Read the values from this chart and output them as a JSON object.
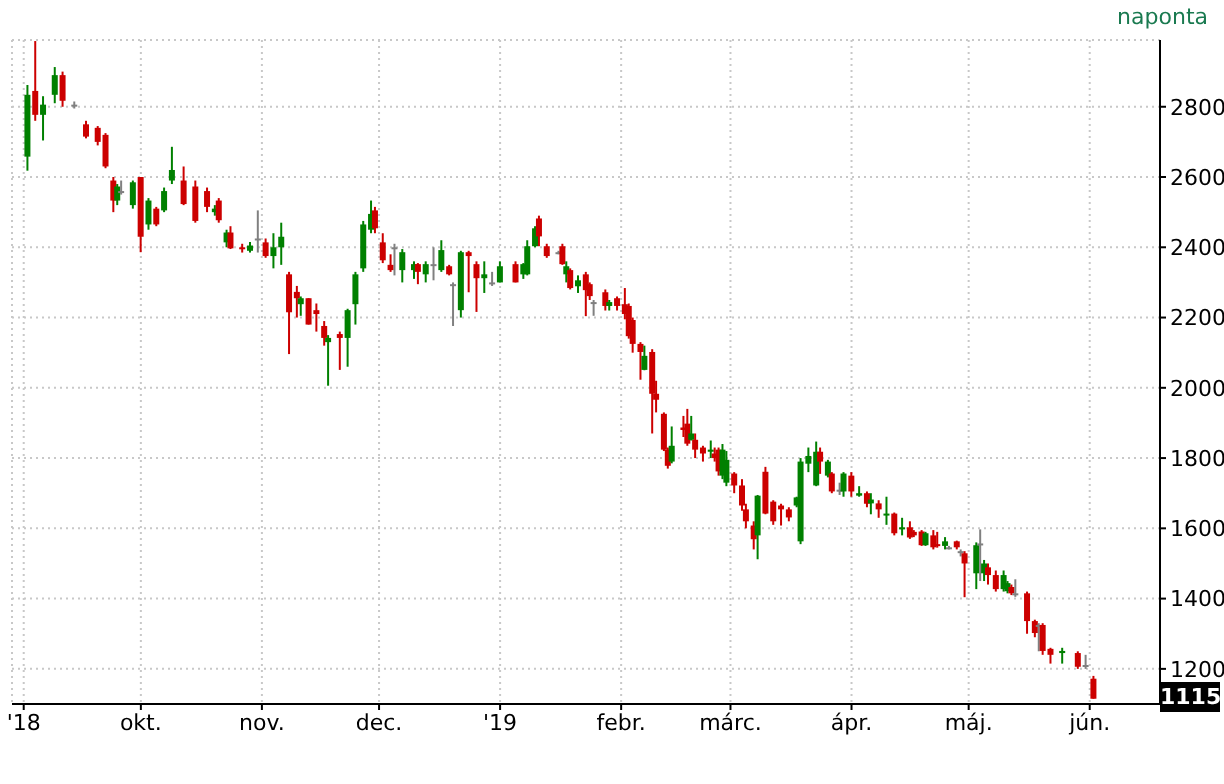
{
  "chart_data": {
    "type": "candlestick",
    "annotations": [
      "naponta",
      {
        "text": "1115",
        "y": 1115
      }
    ],
    "x": [
      "2018-09-02",
      "2018-09-04",
      "2018-09-06",
      "2018-09-09",
      "2018-09-11",
      "2018-09-14",
      "2018-09-17",
      "2018-09-20",
      "2018-09-22",
      "2018-09-24",
      "2018-09-25",
      "2018-09-26",
      "2018-09-29",
      "2018-10-01",
      "2018-10-03",
      "2018-10-05",
      "2018-10-07",
      "2018-10-09",
      "2018-10-12",
      "2018-10-15",
      "2018-10-18",
      "2018-10-20",
      "2018-10-21",
      "2018-10-23",
      "2018-10-24",
      "2018-10-27",
      "2018-10-29",
      "2018-10-31",
      "2018-11-02",
      "2018-11-04",
      "2018-11-06",
      "2018-11-08",
      "2018-11-10",
      "2018-11-11",
      "2018-11-13",
      "2018-11-15",
      "2018-11-17",
      "2018-11-18",
      "2018-11-21",
      "2018-11-23",
      "2018-11-25",
      "2018-11-27",
      "2018-11-29",
      "2018-11-30",
      "2018-12-02",
      "2018-12-04",
      "2018-12-05",
      "2018-12-07",
      "2018-12-10",
      "2018-12-11",
      "2018-12-13",
      "2018-12-15",
      "2018-12-17",
      "2018-12-19",
      "2018-12-20",
      "2018-12-22",
      "2018-12-24",
      "2018-12-26",
      "2018-12-28",
      "2018-12-30",
      "2019-01-01",
      "2019-01-05",
      "2019-01-07",
      "2019-01-08",
      "2019-01-10",
      "2019-01-11",
      "2019-01-13",
      "2019-01-16",
      "2019-01-17",
      "2019-01-18",
      "2019-01-19",
      "2019-01-21",
      "2019-01-23",
      "2019-01-24",
      "2019-01-25",
      "2019-01-28",
      "2019-01-29",
      "2019-01-31",
      "2019-02-02",
      "2019-02-03",
      "2019-02-04",
      "2019-02-06",
      "2019-02-07",
      "2019-02-09",
      "2019-02-10",
      "2019-02-12",
      "2019-02-13",
      "2019-02-14",
      "2019-02-17",
      "2019-02-18",
      "2019-02-19",
      "2019-02-20",
      "2019-02-22",
      "2019-02-24",
      "2019-02-25",
      "2019-02-26",
      "2019-02-27",
      "2019-02-28",
      "2019-03-02",
      "2019-03-04",
      "2019-03-05",
      "2019-03-07",
      "2019-03-08",
      "2019-03-10",
      "2019-03-12",
      "2019-03-14",
      "2019-03-16",
      "2019-03-18",
      "2019-03-19",
      "2019-03-21",
      "2019-03-23",
      "2019-03-24",
      "2019-03-26",
      "2019-03-27",
      "2019-03-29",
      "2019-03-30",
      "2019-04-01",
      "2019-04-03",
      "2019-04-05",
      "2019-04-06",
      "2019-04-08",
      "2019-04-10",
      "2019-04-12",
      "2019-04-14",
      "2019-04-16",
      "2019-04-17",
      "2019-04-19",
      "2019-04-20",
      "2019-04-22",
      "2019-04-23",
      "2019-04-25",
      "2019-04-26",
      "2019-04-28",
      "2019-04-29",
      "2019-04-30",
      "2019-05-03",
      "2019-05-04",
      "2019-05-05",
      "2019-05-06",
      "2019-05-08",
      "2019-05-10",
      "2019-05-11",
      "2019-05-12",
      "2019-05-13",
      "2019-05-16",
      "2019-05-18",
      "2019-05-19",
      "2019-05-20",
      "2019-05-22",
      "2019-05-25",
      "2019-05-29",
      "2019-05-31",
      "2019-06-02"
    ],
    "ohlc": [
      [
        2658,
        2862,
        2618,
        2834
      ],
      [
        2845,
        2987,
        2760,
        2777
      ],
      [
        2777,
        2830,
        2704,
        2806
      ],
      [
        2834,
        2913,
        2810,
        2890
      ],
      [
        2890,
        2900,
        2800,
        2817
      ],
      [
        2806,
        2815,
        2795,
        2806
      ],
      [
        2750,
        2760,
        2710,
        2715
      ],
      [
        2740,
        2745,
        2690,
        2700
      ],
      [
        2720,
        2725,
        2625,
        2630
      ],
      [
        2590,
        2600,
        2500,
        2533
      ],
      [
        2533,
        2580,
        2520,
        2573
      ],
      [
        2560,
        2590,
        2550,
        2560
      ],
      [
        2520,
        2590,
        2510,
        2585
      ],
      [
        2600,
        2600,
        2386,
        2430
      ],
      [
        2465,
        2540,
        2450,
        2533
      ],
      [
        2510,
        2515,
        2460,
        2465
      ],
      [
        2505,
        2570,
        2500,
        2560
      ],
      [
        2590,
        2686,
        2580,
        2620
      ],
      [
        2590,
        2630,
        2520,
        2523
      ],
      [
        2573,
        2590,
        2470,
        2475
      ],
      [
        2560,
        2570,
        2500,
        2515
      ],
      [
        2500,
        2520,
        2490,
        2510
      ],
      [
        2533,
        2540,
        2470,
        2477
      ],
      [
        2414,
        2450,
        2400,
        2442
      ],
      [
        2442,
        2460,
        2395,
        2397
      ],
      [
        2400,
        2410,
        2385,
        2395
      ],
      [
        2390,
        2415,
        2385,
        2405
      ],
      [
        2425,
        2505,
        2385,
        2425
      ],
      [
        2414,
        2425,
        2370,
        2375
      ],
      [
        2375,
        2440,
        2340,
        2400
      ],
      [
        2400,
        2470,
        2350,
        2430
      ],
      [
        2323,
        2330,
        2096,
        2215
      ],
      [
        2273,
        2290,
        2200,
        2255
      ],
      [
        2238,
        2260,
        2205,
        2255
      ],
      [
        2255,
        2255,
        2180,
        2180
      ],
      [
        2221,
        2240,
        2160,
        2210
      ],
      [
        2176,
        2190,
        2120,
        2142
      ],
      [
        2130,
        2150,
        2006,
        2142
      ],
      [
        2153,
        2160,
        2051,
        2142
      ],
      [
        2142,
        2225,
        2060,
        2221
      ],
      [
        2238,
        2330,
        2180,
        2323
      ],
      [
        2340,
        2475,
        2330,
        2465
      ],
      [
        2450,
        2533,
        2440,
        2495
      ],
      [
        2505,
        2515,
        2440,
        2454
      ],
      [
        2414,
        2440,
        2355,
        2363
      ],
      [
        2350,
        2380,
        2330,
        2335
      ],
      [
        2400,
        2410,
        2320,
        2400
      ],
      [
        2335,
        2395,
        2300,
        2386
      ],
      [
        2335,
        2360,
        2310,
        2352
      ],
      [
        2352,
        2355,
        2295,
        2330
      ],
      [
        2323,
        2360,
        2300,
        2352
      ],
      [
        2352,
        2400,
        2306,
        2352
      ],
      [
        2335,
        2420,
        2330,
        2392
      ],
      [
        2346,
        2350,
        2320,
        2323
      ],
      [
        2295,
        2300,
        2176,
        2295
      ],
      [
        2221,
        2390,
        2200,
        2386
      ],
      [
        2386,
        2390,
        2272,
        2375
      ],
      [
        2352,
        2360,
        2216,
        2312
      ],
      [
        2312,
        2360,
        2270,
        2323
      ],
      [
        2300,
        2330,
        2290,
        2300
      ],
      [
        2300,
        2360,
        2300,
        2346
      ],
      [
        2352,
        2360,
        2300,
        2300
      ],
      [
        2323,
        2355,
        2310,
        2352
      ],
      [
        2323,
        2420,
        2320,
        2403
      ],
      [
        2403,
        2460,
        2400,
        2454
      ],
      [
        2482,
        2490,
        2403,
        2431
      ],
      [
        2403,
        2410,
        2370,
        2375
      ],
      [
        2386,
        2390,
        2380,
        2386
      ],
      [
        2403,
        2410,
        2350,
        2352
      ],
      [
        2323,
        2360,
        2300,
        2346
      ],
      [
        2335,
        2340,
        2280,
        2284
      ],
      [
        2289,
        2320,
        2270,
        2306
      ],
      [
        2323,
        2330,
        2204,
        2278
      ],
      [
        2295,
        2300,
        2250,
        2261
      ],
      [
        2244,
        2250,
        2205,
        2244
      ],
      [
        2272,
        2280,
        2220,
        2233
      ],
      [
        2233,
        2250,
        2220,
        2244
      ],
      [
        2255,
        2260,
        2220,
        2233
      ],
      [
        2238,
        2284,
        2195,
        2210
      ],
      [
        2233,
        2240,
        2140,
        2147
      ],
      [
        2193,
        2200,
        2100,
        2125
      ],
      [
        2125,
        2130,
        2023,
        2102
      ],
      [
        2051,
        2120,
        2050,
        2091
      ],
      [
        2102,
        2110,
        1870,
        1983
      ],
      [
        1983,
        2020,
        1930,
        1966
      ],
      [
        1926,
        1930,
        1820,
        1824
      ],
      [
        1824,
        1830,
        1770,
        1778
      ],
      [
        1790,
        1890,
        1785,
        1835
      ],
      [
        1887,
        1920,
        1860,
        1880
      ],
      [
        1898,
        1940,
        1835,
        1841
      ],
      [
        1852,
        1920,
        1850,
        1870
      ],
      [
        1852,
        1870,
        1800,
        1824
      ],
      [
        1830,
        1835,
        1790,
        1813
      ],
      [
        1818,
        1850,
        1800,
        1824
      ],
      [
        1813,
        1830,
        1790,
        1800
      ],
      [
        1824,
        1830,
        1750,
        1762
      ],
      [
        1750,
        1840,
        1740,
        1824
      ],
      [
        1730,
        1820,
        1720,
        1795
      ],
      [
        1756,
        1760,
        1700,
        1722
      ],
      [
        1722,
        1740,
        1650,
        1665
      ],
      [
        1654,
        1670,
        1600,
        1620
      ],
      [
        1608,
        1620,
        1540,
        1569
      ],
      [
        1580,
        1695,
        1512,
        1693
      ],
      [
        1761,
        1775,
        1640,
        1642
      ],
      [
        1676,
        1680,
        1610,
        1620
      ],
      [
        1665,
        1670,
        1608,
        1654
      ],
      [
        1654,
        1660,
        1620,
        1631
      ],
      [
        1665,
        1690,
        1660,
        1688
      ],
      [
        1563,
        1800,
        1555,
        1790
      ],
      [
        1784,
        1830,
        1760,
        1806
      ],
      [
        1722,
        1847,
        1720,
        1818
      ],
      [
        1818,
        1830,
        1755,
        1790
      ],
      [
        1750,
        1795,
        1745,
        1790
      ],
      [
        1756,
        1760,
        1700,
        1705
      ],
      [
        1710,
        1730,
        1695,
        1710
      ],
      [
        1705,
        1760,
        1690,
        1756
      ],
      [
        1750,
        1760,
        1690,
        1705
      ],
      [
        1693,
        1720,
        1690,
        1700
      ],
      [
        1700,
        1705,
        1660,
        1670
      ],
      [
        1671,
        1700,
        1640,
        1682
      ],
      [
        1671,
        1680,
        1630,
        1654
      ],
      [
        1637,
        1690,
        1610,
        1642
      ],
      [
        1642,
        1645,
        1580,
        1586
      ],
      [
        1597,
        1630,
        1580,
        1603
      ],
      [
        1603,
        1620,
        1570,
        1574
      ],
      [
        1590,
        1595,
        1575,
        1580
      ],
      [
        1591,
        1595,
        1550,
        1552
      ],
      [
        1552,
        1590,
        1550,
        1586
      ],
      [
        1580,
        1595,
        1540,
        1546
      ],
      [
        1555,
        1590,
        1545,
        1550
      ],
      [
        1550,
        1575,
        1540,
        1563
      ],
      [
        1546,
        1550,
        1540,
        1546
      ],
      [
        1563,
        1565,
        1540,
        1546
      ],
      [
        1535,
        1540,
        1520,
        1535
      ],
      [
        1529,
        1535,
        1404,
        1500
      ],
      [
        1472,
        1560,
        1427,
        1552
      ],
      [
        1557,
        1597,
        1450,
        1557
      ],
      [
        1472,
        1510,
        1450,
        1500
      ],
      [
        1489,
        1500,
        1440,
        1467
      ],
      [
        1467,
        1480,
        1420,
        1427
      ],
      [
        1427,
        1480,
        1420,
        1467
      ],
      [
        1421,
        1450,
        1415,
        1444
      ],
      [
        1433,
        1440,
        1410,
        1415
      ],
      [
        1415,
        1455,
        1405,
        1415
      ],
      [
        1415,
        1420,
        1300,
        1336
      ],
      [
        1336,
        1340,
        1290,
        1302
      ],
      [
        1325,
        1330,
        1250,
        1325
      ],
      [
        1325,
        1330,
        1240,
        1251
      ],
      [
        1257,
        1260,
        1215,
        1240
      ],
      [
        1245,
        1260,
        1215,
        1251
      ],
      [
        1245,
        1250,
        1200,
        1206
      ],
      [
        1211,
        1240,
        1200,
        1211
      ],
      [
        1172,
        1180,
        1115,
        1115
      ]
    ],
    "colors": [
      "#008000",
      "#cc0000",
      "#008000",
      "#008000",
      "#cc0000",
      "#808080",
      "#cc0000",
      "#cc0000",
      "#cc0000",
      "#cc0000",
      "#008000",
      "#808080",
      "#008000",
      "#cc0000",
      "#008000",
      "#cc0000",
      "#008000",
      "#008000",
      "#cc0000",
      "#cc0000",
      "#cc0000",
      "#008000",
      "#cc0000",
      "#008000",
      "#cc0000",
      "#cc0000",
      "#008000",
      "#808080",
      "#cc0000",
      "#008000",
      "#008000",
      "#cc0000",
      "#cc0000",
      "#008000",
      "#cc0000",
      "#cc0000",
      "#cc0000",
      "#008000",
      "#cc0000",
      "#008000",
      "#008000",
      "#008000",
      "#008000",
      "#cc0000",
      "#cc0000",
      "#cc0000",
      "#808080",
      "#008000",
      "#008000",
      "#cc0000",
      "#008000",
      "#808080",
      "#008000",
      "#cc0000",
      "#808080",
      "#008000",
      "#cc0000",
      "#cc0000",
      "#008000",
      "#808080",
      "#008000",
      "#cc0000",
      "#008000",
      "#008000",
      "#008000",
      "#cc0000",
      "#cc0000",
      "#808080",
      "#cc0000",
      "#008000",
      "#cc0000",
      "#008000",
      "#cc0000",
      "#cc0000",
      "#808080",
      "#cc0000",
      "#008000",
      "#cc0000",
      "#cc0000",
      "#cc0000",
      "#cc0000",
      "#cc0000",
      "#008000",
      "#cc0000",
      "#cc0000",
      "#cc0000",
      "#cc0000",
      "#008000",
      "#cc0000",
      "#cc0000",
      "#008000",
      "#cc0000",
      "#cc0000",
      "#008000",
      "#cc0000",
      "#cc0000",
      "#008000",
      "#008000",
      "#cc0000",
      "#cc0000",
      "#cc0000",
      "#cc0000",
      "#008000",
      "#cc0000",
      "#cc0000",
      "#cc0000",
      "#cc0000",
      "#008000",
      "#008000",
      "#008000",
      "#008000",
      "#cc0000",
      "#008000",
      "#cc0000",
      "#808080",
      "#008000",
      "#cc0000",
      "#008000",
      "#cc0000",
      "#008000",
      "#cc0000",
      "#008000",
      "#cc0000",
      "#008000",
      "#cc0000",
      "#cc0000",
      "#cc0000",
      "#008000",
      "#cc0000",
      "#cc0000",
      "#008000",
      "#808080",
      "#cc0000",
      "#808080",
      "#cc0000",
      "#008000",
      "#808080",
      "#008000",
      "#cc0000",
      "#cc0000",
      "#008000",
      "#008000",
      "#cc0000",
      "#808080",
      "#cc0000",
      "#cc0000",
      "#808080",
      "#cc0000",
      "#cc0000",
      "#008000",
      "#cc0000",
      "#808080",
      "#cc0000"
    ],
    "xlim": [
      "2018-08-29",
      "2019-06-19"
    ],
    "xticks": [
      {
        "value": "2018-09-01",
        "label": "'18"
      },
      {
        "value": "2018-10-01",
        "label": "okt."
      },
      {
        "value": "2018-11-01",
        "label": "nov."
      },
      {
        "value": "2018-12-01",
        "label": "dec."
      },
      {
        "value": "2019-01-01",
        "label": "'19"
      },
      {
        "value": "2019-02-01",
        "label": "febr."
      },
      {
        "value": "2019-03-01",
        "label": "márc."
      },
      {
        "value": "2019-04-01",
        "label": "ápr."
      },
      {
        "value": "2019-05-01",
        "label": "máj."
      },
      {
        "value": "2019-06-01",
        "label": "jún."
      }
    ],
    "ylim": [
      1100,
      2990
    ],
    "yticks": [
      1200,
      1400,
      1600,
      1800,
      2000,
      2200,
      2400,
      2600,
      2800
    ],
    "grid": true
  }
}
